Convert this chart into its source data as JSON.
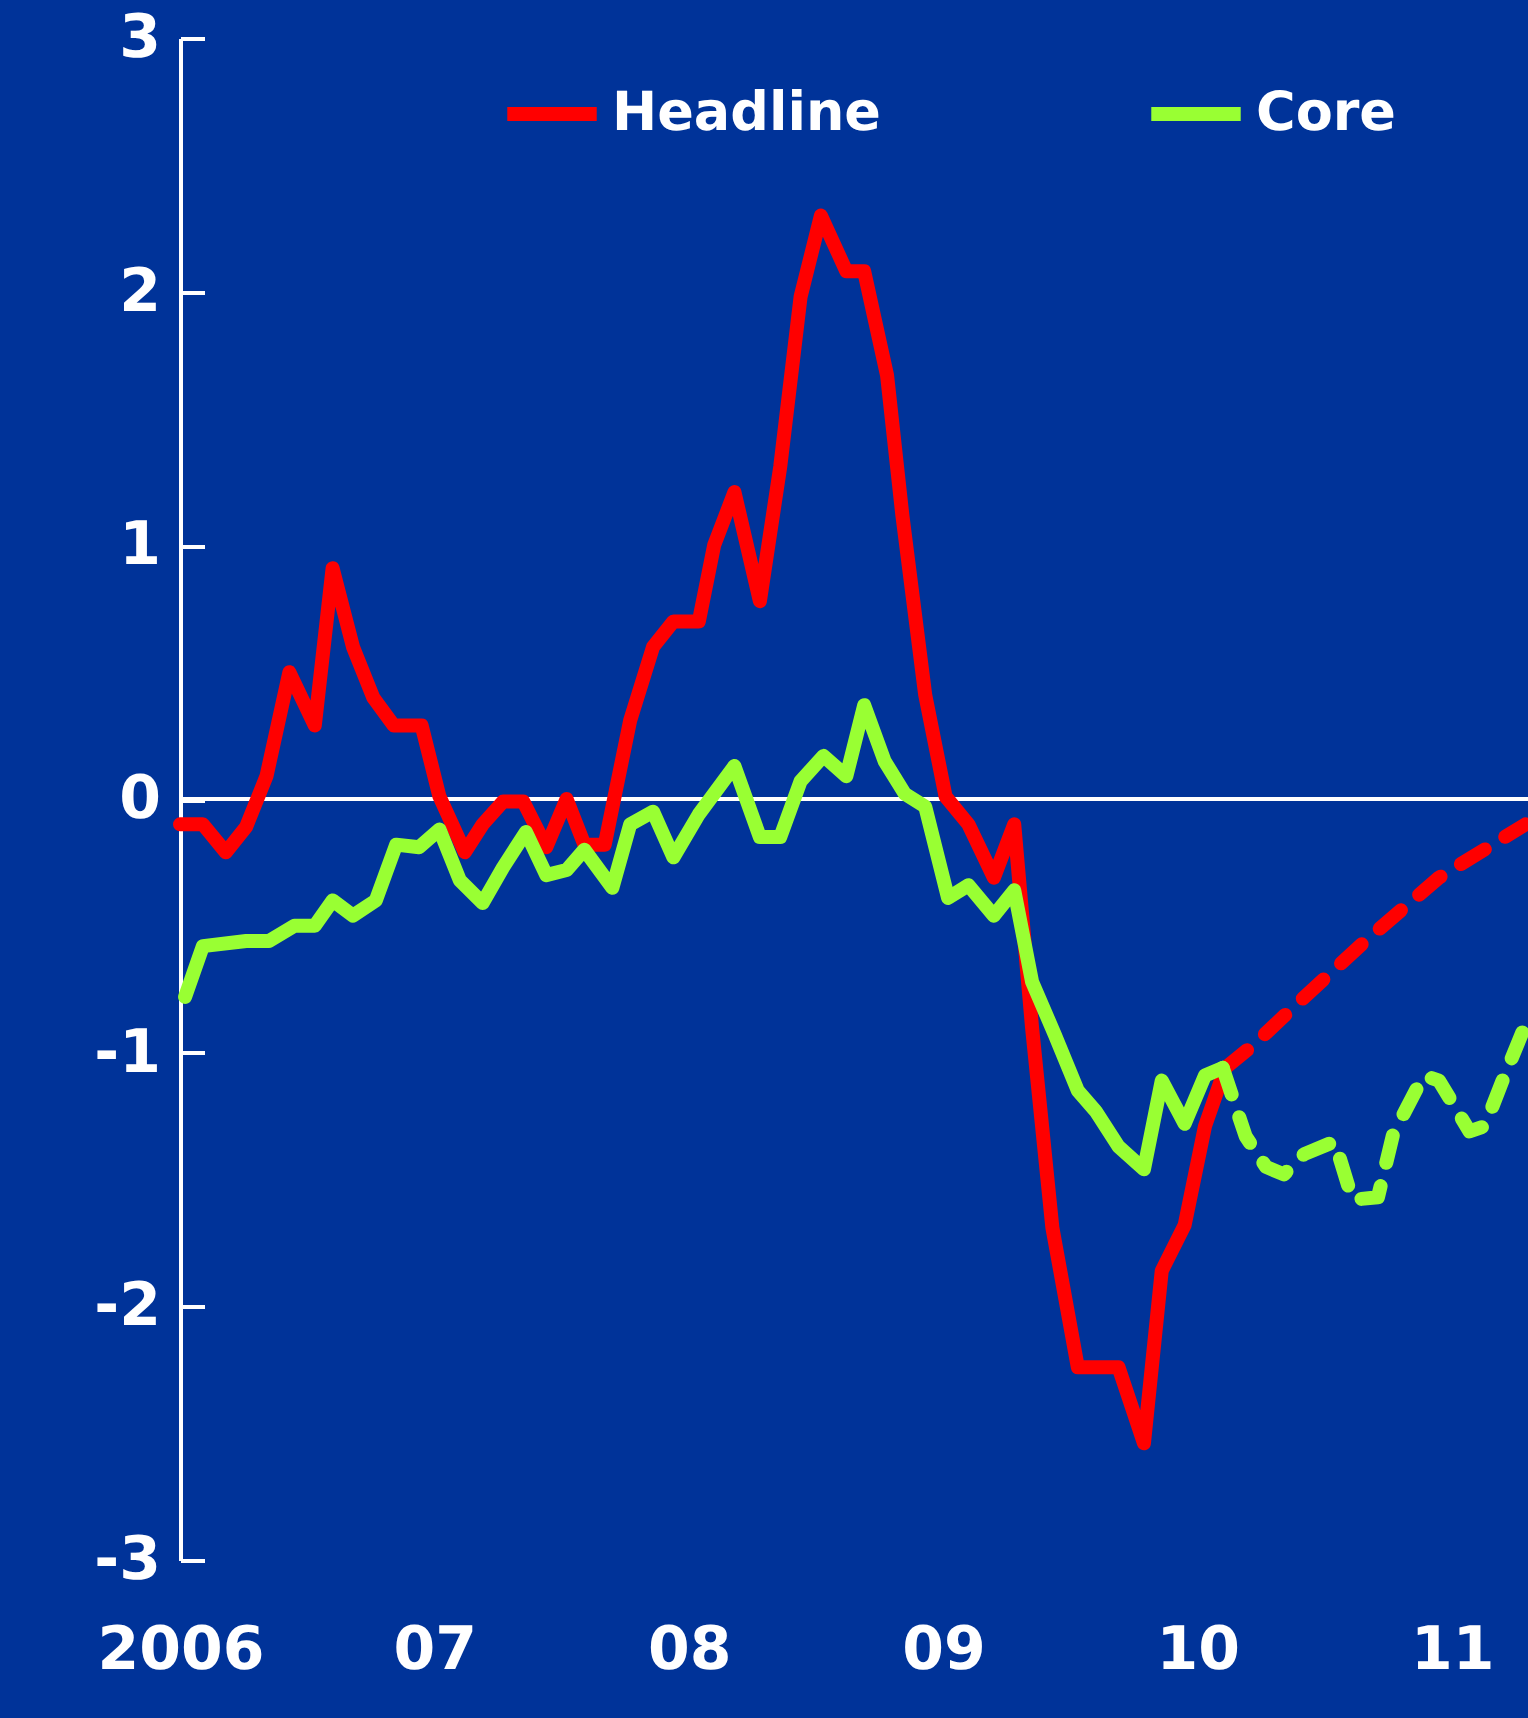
{
  "chart_data": {
    "type": "line",
    "xlim": [
      2006,
      2011.3
    ],
    "ylim": [
      -3,
      3
    ],
    "xticks": [
      {
        "value": 2006,
        "label": "2006"
      },
      {
        "value": 2007,
        "label": "07"
      },
      {
        "value": 2008,
        "label": "08"
      },
      {
        "value": 2009,
        "label": "09"
      },
      {
        "value": 2010,
        "label": "10"
      },
      {
        "value": 2011,
        "label": "11"
      }
    ],
    "yticks": [
      -3,
      -2,
      -1,
      0,
      1,
      2,
      3
    ],
    "grid": false,
    "legend": "top",
    "marker": "none",
    "ref_lines": [
      {
        "axis": "y",
        "value": 0,
        "label": null,
        "color": "#ffffff"
      }
    ],
    "series": [
      {
        "name": "Headline",
        "color": "#ff0000",
        "line_style": "solid",
        "x": [
          2006.0,
          2006.09,
          2006.18,
          2006.26,
          2006.34,
          2006.43,
          2006.53,
          2006.6,
          2006.68,
          2006.76,
          2006.84,
          2006.95,
          2007.02,
          2007.12,
          2007.19,
          2007.27,
          2007.35,
          2007.44,
          2007.52,
          2007.59,
          2007.67,
          2007.77,
          2007.86,
          2007.94,
          2008.04,
          2008.1,
          2008.18,
          2008.28,
          2008.36,
          2008.44,
          2008.52,
          2008.62,
          2008.69,
          2008.78,
          2008.84,
          2008.93,
          2009.01,
          2009.1,
          2009.2,
          2009.28,
          2009.35,
          2009.43,
          2009.53,
          2009.69,
          2009.79,
          2009.86,
          2009.95,
          2010.03,
          2010.11
        ],
        "values": [
          -0.1,
          -0.1,
          -0.21,
          -0.11,
          0.09,
          0.5,
          0.29,
          0.91,
          0.6,
          0.4,
          0.29,
          0.29,
          0.01,
          -0.21,
          -0.1,
          -0.01,
          -0.01,
          -0.19,
          0.0,
          -0.18,
          -0.18,
          0.31,
          0.6,
          0.7,
          0.7,
          1.0,
          1.21,
          0.78,
          1.31,
          1.98,
          2.3,
          2.08,
          2.08,
          1.67,
          1.12,
          0.41,
          0.01,
          -0.1,
          -0.31,
          -0.1,
          -0.9,
          -1.69,
          -2.24,
          -2.24,
          -2.54,
          -1.86,
          -1.68,
          -1.29,
          -1.06
        ]
      },
      {
        "color": "#ff0000",
        "line_style": "dashed",
        "x": [
          2010.11,
          2010.22,
          2010.4,
          2010.66,
          2010.95,
          2011.29
        ],
        "values": [
          -1.06,
          -0.97,
          -0.8,
          -0.56,
          -0.31,
          -0.1
        ]
      },
      {
        "name": "Core",
        "color": "#99ff33",
        "line_style": "solid",
        "x": [
          2006.02,
          2006.09,
          2006.26,
          2006.35,
          2006.45,
          2006.53,
          2006.6,
          2006.68,
          2006.77,
          2006.85,
          2006.94,
          2007.02,
          2007.1,
          2007.19,
          2007.27,
          2007.36,
          2007.44,
          2007.52,
          2007.59,
          2007.7,
          2007.77,
          2007.86,
          2007.94,
          2008.04,
          2008.18,
          2008.28,
          2008.36,
          2008.44,
          2008.53,
          2008.62,
          2008.69,
          2008.77,
          2008.85,
          2008.93,
          2009.02,
          2009.1,
          2009.2,
          2009.28,
          2009.35,
          2009.44,
          2009.53,
          2009.6,
          2009.69,
          2009.79,
          2009.86,
          2009.95,
          2010.03,
          2010.1
        ],
        "values": [
          -0.78,
          -0.58,
          -0.56,
          -0.56,
          -0.5,
          -0.5,
          -0.4,
          -0.46,
          -0.4,
          -0.18,
          -0.19,
          -0.12,
          -0.32,
          -0.41,
          -0.27,
          -0.13,
          -0.3,
          -0.28,
          -0.2,
          -0.35,
          -0.1,
          -0.05,
          -0.23,
          -0.06,
          0.13,
          -0.15,
          -0.15,
          0.07,
          0.17,
          0.09,
          0.37,
          0.15,
          0.02,
          -0.03,
          -0.39,
          -0.34,
          -0.46,
          -0.36,
          -0.72,
          -0.93,
          -1.15,
          -1.23,
          -1.37,
          -1.46,
          -1.11,
          -1.28,
          -1.09,
          -1.06
        ]
      },
      {
        "color": "#99ff33",
        "line_style": "dashed",
        "x": [
          2010.1,
          2010.15,
          2010.19,
          2010.27,
          2010.34,
          2010.42,
          2010.54,
          2010.61,
          2010.71,
          2010.77,
          2010.89,
          2010.95,
          2011.07,
          2011.13,
          2011.2,
          2011.29
        ],
        "values": [
          -1.06,
          -1.21,
          -1.33,
          -1.45,
          -1.48,
          -1.4,
          -1.35,
          -1.58,
          -1.57,
          -1.32,
          -1.09,
          -1.11,
          -1.31,
          -1.29,
          -1.11,
          -0.89
        ]
      }
    ]
  }
}
